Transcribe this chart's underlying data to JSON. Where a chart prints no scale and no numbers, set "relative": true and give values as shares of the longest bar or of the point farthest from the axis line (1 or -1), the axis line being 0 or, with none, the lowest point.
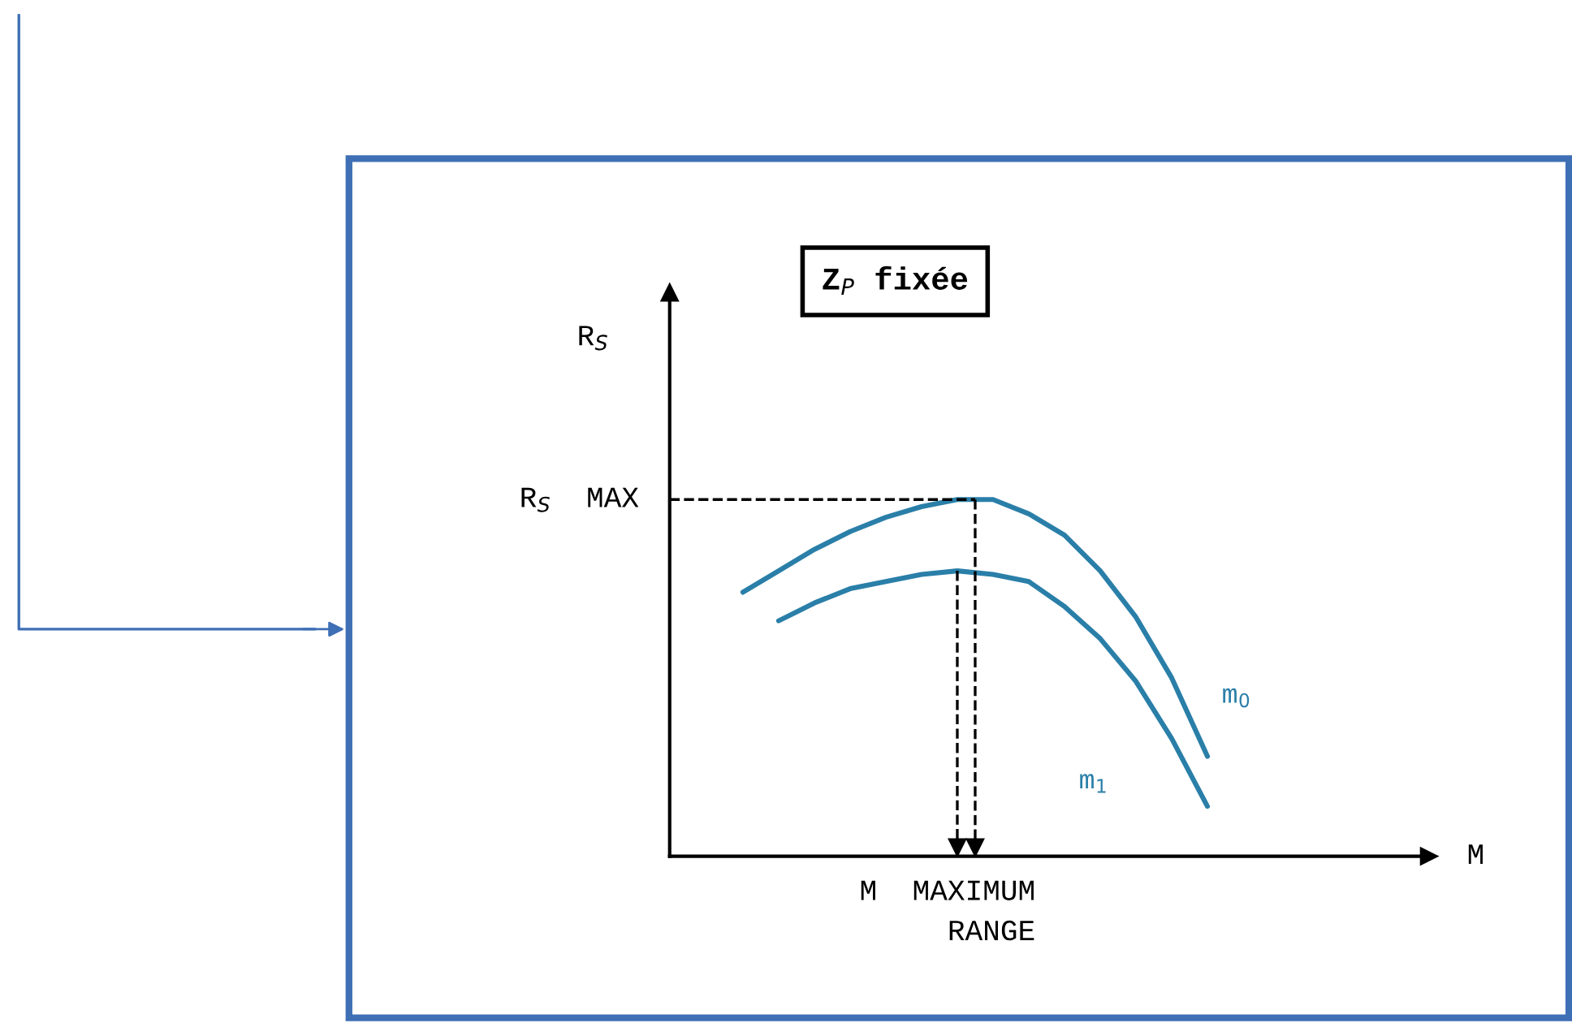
{
  "chart_data": {
    "type": "line",
    "relative": true,
    "annotations": [
      "Z$_{P}$ fixée",
      "R$_{S}$",
      "M",
      "M  MAXIMUM\n     RANGE"
    ],
    "categories": [
      null,
      null,
      null,
      null,
      null,
      null,
      null,
      null,
      null,
      null,
      null,
      null,
      null,
      null
    ],
    "series": [
      {
        "name": "m$_{0}$",
        "color": "#2a7fa8",
        "values": [
          0.74,
          0.8,
          0.86,
          0.91,
          0.95,
          0.98,
          1,
          1,
          0.96,
          0.9,
          0.8,
          0.67,
          0.5,
          0.28
        ]
      },
      {
        "name": "m$_{1}$",
        "color": "#2a7fa8",
        "values": [
          null,
          0.66,
          0.71,
          0.75,
          0.77,
          0.79,
          0.8,
          0.79,
          0.77,
          0.7,
          0.61,
          0.49,
          0.33,
          0.14
        ]
      }
    ],
    "ref_lines": [
      {
        "axis": "y",
        "value": 1,
        "label": "R$_{S}$  MAX",
        "line_style": "dashed",
        "color": "#000000"
      }
    ],
    "marker": "none",
    "line_style": "solid",
    "tick_labels": false
  }
}
